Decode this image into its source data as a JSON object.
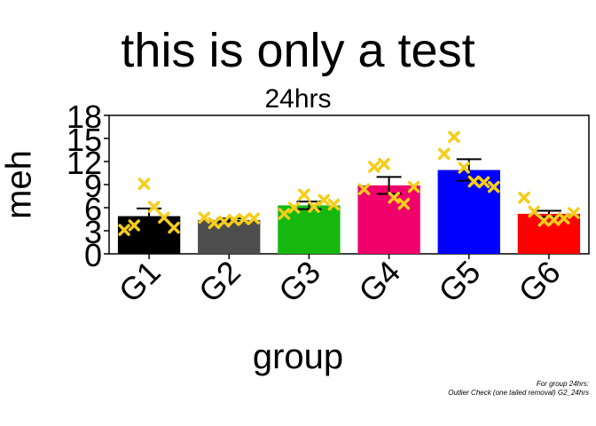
{
  "chart_data": {
    "type": "bar",
    "title": "this is only a test",
    "subtitle": "24hrs",
    "xlabel": "group",
    "ylabel": "meh",
    "categories": [
      "G1",
      "G2",
      "G3",
      "G4",
      "G5",
      "G6"
    ],
    "values": [
      4.9,
      4.4,
      6.3,
      8.9,
      10.9,
      5.2
    ],
    "errors": [
      1.0,
      0.2,
      0.5,
      1.1,
      1.4,
      0.4
    ],
    "bar_colors": [
      "#000000",
      "#4d4d4d",
      "#16b80f",
      "#f0006b",
      "#0000ff",
      "#ff0000"
    ],
    "point_color": "#f5cd1b",
    "points": [
      [
        3.1,
        3.7,
        9.1,
        6.1,
        4.7,
        3.4
      ],
      [
        4.7,
        4.0,
        4.2,
        4.4,
        4.5,
        4.6
      ],
      [
        5.2,
        6.0,
        7.7,
        6.1,
        7.0,
        6.4
      ],
      [
        8.4,
        11.3,
        11.7,
        7.3,
        6.5,
        8.7
      ],
      [
        13.0,
        15.2,
        11.2,
        9.4,
        9.3,
        8.7
      ],
      [
        7.3,
        5.5,
        4.3,
        4.4,
        4.6,
        5.3
      ]
    ],
    "yticks": [
      0,
      3,
      6,
      9,
      12,
      15,
      18
    ],
    "ylim": [
      0,
      18
    ],
    "grid": false,
    "legend": "none"
  },
  "footnote": {
    "line1": "For group 24hrs:",
    "line2": "Outlier Check (one tailed removal) G2_24hrs"
  }
}
